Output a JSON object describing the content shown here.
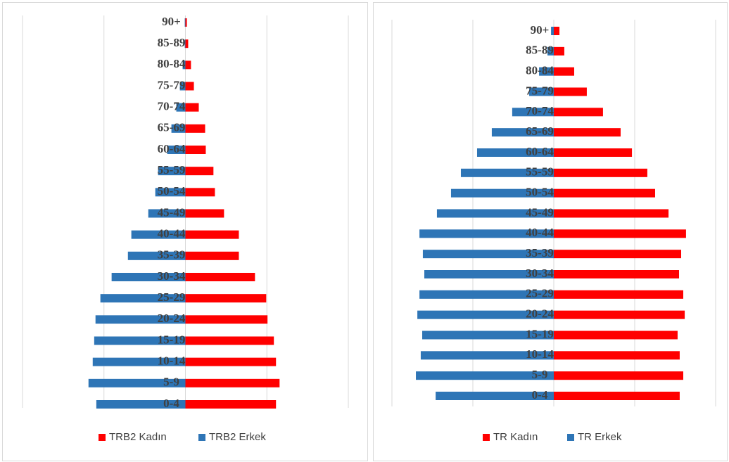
{
  "chart_data": [
    {
      "type": "bar",
      "orientation": "horizontal",
      "categories": [
        "0-4",
        "5-9",
        "10-14",
        "15-19",
        "20-24",
        "25-29",
        "30-34",
        "35-39",
        "40-44",
        "45-49",
        "50-54",
        "55-59",
        "60-64",
        "65-69",
        "70-74",
        "75-79",
        "80-84",
        "85-89",
        "90+"
      ],
      "series": [
        {
          "name": "TRB2 Kadın",
          "color": "#ff0000",
          "values": [
            5.56,
            5.78,
            5.56,
            5.43,
            5.04,
            4.96,
            4.27,
            3.28,
            3.28,
            2.37,
            1.81,
            1.72,
            1.25,
            1.21,
            0.82,
            0.52,
            0.34,
            0.17,
            0.09
          ]
        },
        {
          "name": "TRB2 Erkek",
          "color": "#2e75b6",
          "values": [
            -5.47,
            -5.95,
            -5.69,
            -5.6,
            -5.52,
            -5.22,
            -4.53,
            -3.53,
            -3.32,
            -2.28,
            -1.85,
            -1.68,
            -1.12,
            -0.86,
            -0.56,
            -0.34,
            -0.17,
            -0.04,
            -0.04
          ]
        }
      ],
      "xlim": [
        -10,
        10
      ],
      "xticks": [
        -10,
        -5,
        0,
        5,
        10
      ],
      "grid": true,
      "legend": "bottom"
    },
    {
      "type": "bar",
      "orientation": "horizontal",
      "categories": [
        "0-4",
        "5-9",
        "10-14",
        "15-19",
        "20-24",
        "25-29",
        "30-34",
        "35-39",
        "40-44",
        "45-49",
        "50-54",
        "55-59",
        "60-64",
        "65-69",
        "70-74",
        "75-79",
        "80-84",
        "85-89",
        "90+"
      ],
      "series": [
        {
          "name": "TR Kadın",
          "color": "#ff0000",
          "values": [
            7.78,
            8.0,
            7.78,
            7.65,
            8.09,
            8.0,
            7.74,
            7.87,
            8.17,
            7.09,
            6.26,
            5.78,
            4.83,
            4.13,
            3.04,
            2.04,
            1.26,
            0.65,
            0.35
          ]
        },
        {
          "name": "TR Erkek",
          "color": "#2e75b6",
          "values": [
            -7.3,
            -8.52,
            -8.22,
            -8.13,
            -8.43,
            -8.3,
            -8.0,
            -8.09,
            -8.3,
            -7.22,
            -6.35,
            -5.74,
            -4.74,
            -3.83,
            -2.57,
            -1.52,
            -0.91,
            -0.39,
            -0.17
          ]
        }
      ],
      "xlim": [
        -10,
        10
      ],
      "xticks": [
        -10,
        -5,
        0,
        5,
        10
      ],
      "grid": true,
      "legend": "bottom"
    }
  ]
}
